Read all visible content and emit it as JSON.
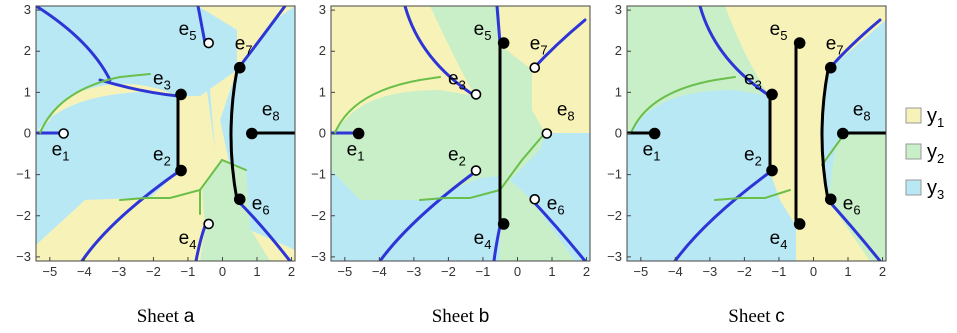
{
  "colors": {
    "y1": "#f7f3b8",
    "y2": "#c9efc9",
    "y3": "#b9e8f5",
    "cut": "#2d35d6",
    "boundary": "#6abf4a",
    "branch": "#000000"
  },
  "axes": {
    "x_ticks": [
      "−5",
      "−4",
      "−3",
      "−2",
      "−1",
      "0",
      "1",
      "2"
    ],
    "y_ticks": [
      "3",
      "2",
      "1",
      "0",
      "−1",
      "−2",
      "−3"
    ]
  },
  "points": [
    {
      "base": "e",
      "sub": "1"
    },
    {
      "base": "e",
      "sub": "2"
    },
    {
      "base": "e",
      "sub": "3"
    },
    {
      "base": "e",
      "sub": "4"
    },
    {
      "base": "e",
      "sub": "5"
    },
    {
      "base": "e",
      "sub": "6"
    },
    {
      "base": "e",
      "sub": "7"
    },
    {
      "base": "e",
      "sub": "8"
    }
  ],
  "panels": [
    {
      "caption_word": "Sheet",
      "caption_letter": "a"
    },
    {
      "caption_word": "Sheet",
      "caption_letter": "b"
    },
    {
      "caption_word": "Sheet",
      "caption_letter": "c"
    }
  ],
  "legend": [
    {
      "base": "y",
      "sub": "1",
      "color": "#f7f3b8"
    },
    {
      "base": "y",
      "sub": "2",
      "color": "#c9efc9"
    },
    {
      "base": "y",
      "sub": "3",
      "color": "#b9e8f5"
    }
  ]
}
